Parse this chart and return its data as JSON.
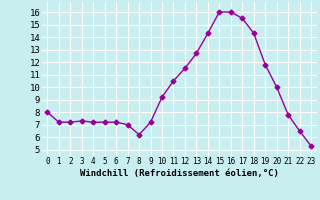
{
  "x": [
    0,
    1,
    2,
    3,
    4,
    5,
    6,
    7,
    8,
    9,
    10,
    11,
    12,
    13,
    14,
    15,
    16,
    17,
    18,
    19,
    20,
    21,
    22,
    23
  ],
  "y": [
    8.0,
    7.2,
    7.2,
    7.3,
    7.2,
    7.2,
    7.2,
    7.0,
    6.2,
    7.2,
    9.2,
    10.5,
    11.5,
    12.7,
    14.3,
    16.0,
    16.0,
    15.5,
    14.3,
    11.8,
    10.0,
    7.8,
    6.5,
    5.3
  ],
  "line_color": "#990099",
  "marker": "D",
  "markersize": 2.5,
  "linewidth": 1.0,
  "bg_color": "#c8eef0",
  "grid_color": "#ffffff",
  "xlabel": "Windchill (Refroidissement éolien,°C)",
  "xlabel_fontsize": 6.5,
  "ytick_labels": [
    "5",
    "6",
    "7",
    "8",
    "9",
    "10",
    "11",
    "12",
    "13",
    "14",
    "15",
    "16"
  ],
  "ytick_values": [
    5,
    6,
    7,
    8,
    9,
    10,
    11,
    12,
    13,
    14,
    15,
    16
  ],
  "ylim": [
    4.5,
    16.8
  ],
  "xlim": [
    -0.5,
    23.5
  ],
  "xtick_fontsize": 5.5,
  "ytick_fontsize": 6.5,
  "fig_width": 3.2,
  "fig_height": 2.0,
  "dpi": 100
}
